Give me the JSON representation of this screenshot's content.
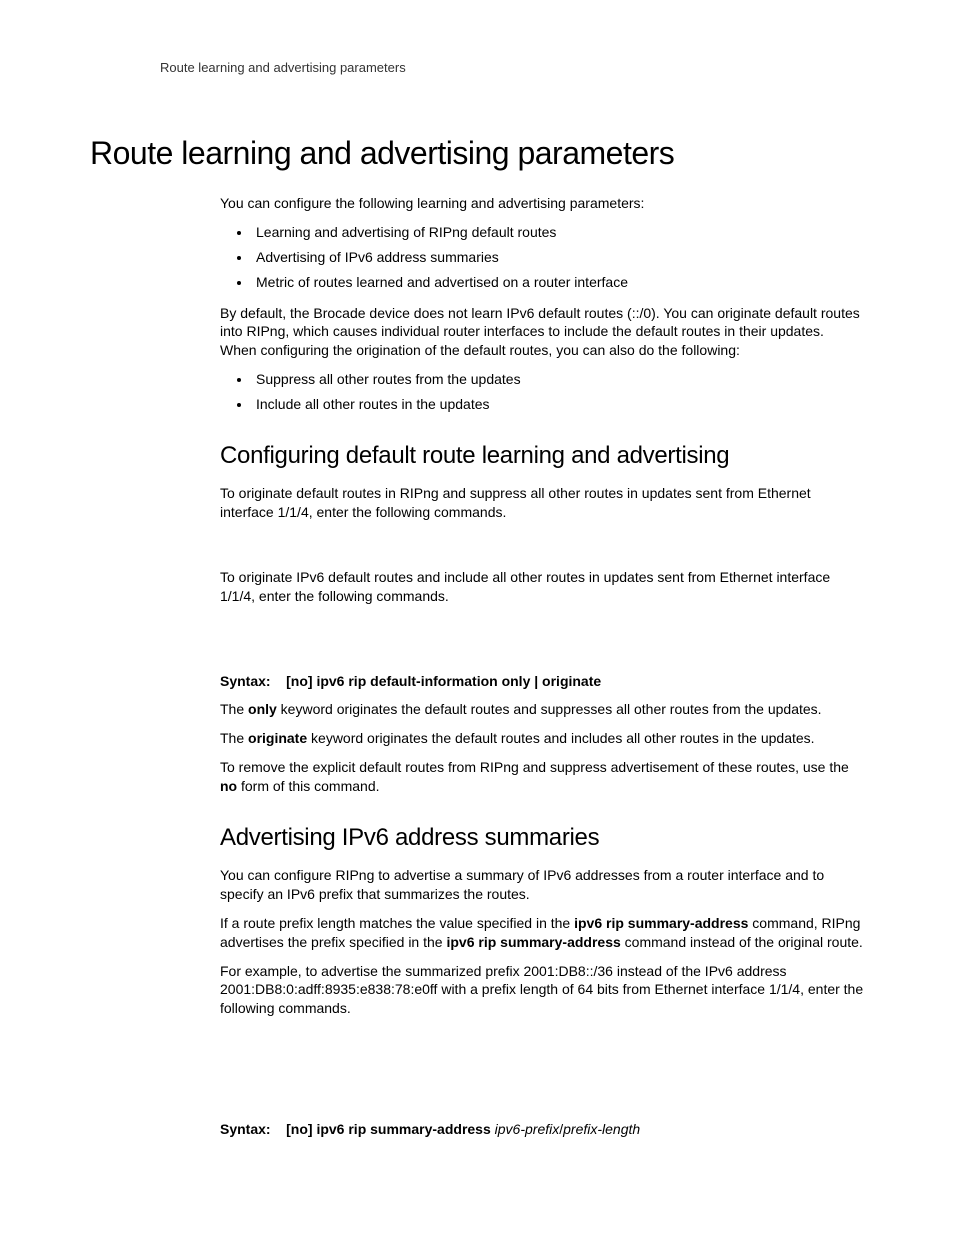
{
  "header": {
    "running": "Route learning and advertising parameters"
  },
  "title": "Route learning and advertising parameters",
  "intro": {
    "lead": "You can configure the following learning and advertising parameters:",
    "bullets1": [
      "Learning and advertising of RIPng default routes",
      "Advertising of IPv6 address summaries",
      "Metric of routes learned and advertised on a router interface"
    ],
    "para2": "By default, the Brocade device does not learn IPv6 default routes (::/0). You can originate default routes into RIPng, which causes individual router interfaces to include the default routes in their updates. When configuring the origination of the default routes, you can also do the following:",
    "bullets2": [
      "Suppress all other routes from the updates",
      "Include all other routes in the updates"
    ]
  },
  "sec1": {
    "title": "Configuring default route learning and advertising",
    "p1": "To originate default routes in RIPng and suppress all other routes in updates sent from Ethernet interface 1/1/4, enter the following commands.",
    "p2": "To originate IPv6 default routes and include all other routes in updates sent from Ethernet interface 1/1/4, enter the following commands.",
    "syntax_label": "Syntax:",
    "syntax_body": "[no] ipv6 rip default-information only | originate",
    "p3_a": "The ",
    "p3_b": "only",
    "p3_c": " keyword originates the default routes and suppresses all other routes from the updates.",
    "p4_a": "The ",
    "p4_b": "originate",
    "p4_c": " keyword originates the default routes and includes all other routes in the updates.",
    "p5_a": "To remove the explicit default routes from RIPng and suppress advertisement of these routes, use the ",
    "p5_b": "no",
    "p5_c": " form of this command."
  },
  "sec2": {
    "title": "Advertising IPv6 address summaries",
    "p1": "You can configure RIPng to advertise a summary of IPv6 addresses from a router interface and to specify an IPv6 prefix that summarizes the routes.",
    "p2_a": "If a route prefix length matches the value specified in the ",
    "p2_b": "ipv6 rip summary-address",
    "p2_c": " command, RIPng advertises the prefix specified in the ",
    "p2_d": "ipv6 rip summary-address",
    "p2_e": " command instead of the original route.",
    "p3": "For example, to advertise the summarized prefix 2001:DB8::/36 instead of the IPv6 address 2001:DB8:0:adff:8935:e838:78:e0ff with a prefix length of 64 bits from Ethernet interface 1/1/4, enter the following commands.",
    "syntax_label": "Syntax:",
    "syntax_body_bold": "[no] ipv6 rip summary-address",
    "syntax_body_ital": " ipv6-prefix",
    "syntax_slash": "/",
    "syntax_body_ital2": "prefix-length"
  }
}
